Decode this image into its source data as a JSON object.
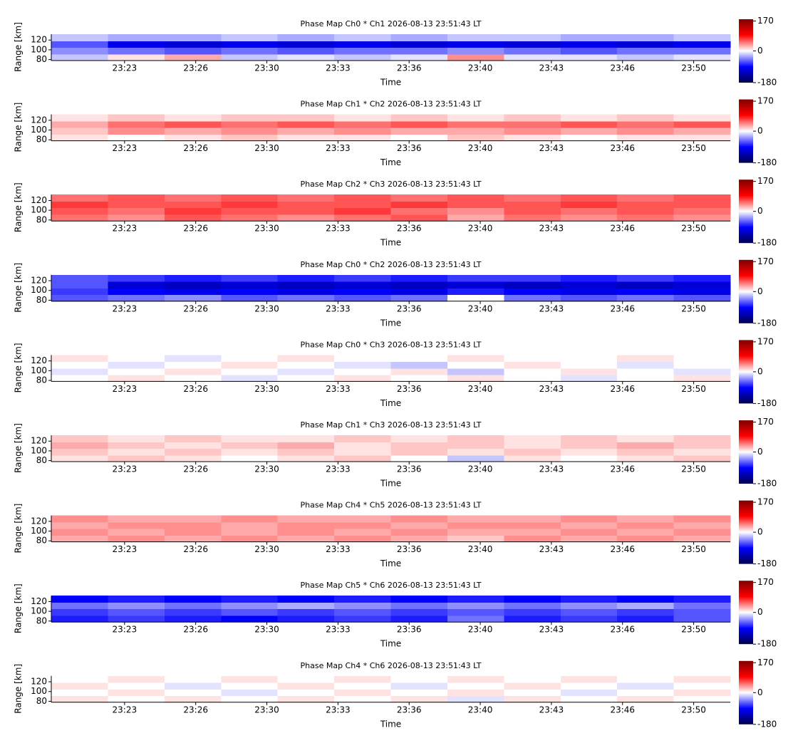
{
  "chart_data": [
    {
      "type": "heatmap",
      "title": "Phase Map Ch0 * Ch1 2026-08-13 23:51:43 LT",
      "xlabel": "Time",
      "ylabel": "Range [km]",
      "xlim": [
        "23:19:54",
        "23:51:43"
      ],
      "xticks": [
        {
          "value": "23:23:20",
          "label": "23:23"
        },
        {
          "value": "23:26:40",
          "label": "23:26"
        },
        {
          "value": "23:30:00",
          "label": "23:30"
        },
        {
          "value": "23:33:20",
          "label": "23:33"
        },
        {
          "value": "23:36:40",
          "label": "23:36"
        },
        {
          "value": "23:40:00",
          "label": "23:40"
        },
        {
          "value": "23:43:20",
          "label": "23:43"
        },
        {
          "value": "23:46:40",
          "label": "23:46"
        },
        {
          "value": "23:50:00",
          "label": "23:50"
        }
      ],
      "ylim": [
        78,
        132
      ],
      "yticks": [
        80,
        100,
        120
      ],
      "z": [
        [
          -20,
          10,
          30,
          -20,
          -10,
          -20,
          -10,
          40,
          -10,
          -10,
          -20,
          -10
        ],
        [
          -40,
          -50,
          -60,
          -50,
          -60,
          -50,
          -50,
          -40,
          -50,
          -60,
          -50,
          -50
        ],
        [
          -60,
          -100,
          -110,
          -100,
          -110,
          -100,
          -110,
          -100,
          -110,
          -100,
          -110,
          -100
        ],
        [
          -20,
          -30,
          -30,
          -20,
          -30,
          -20,
          -30,
          -20,
          -20,
          -30,
          -30,
          -20
        ]
      ],
      "clim": [
        -180,
        180
      ],
      "cticks": [
        170,
        0,
        -180
      ],
      "colormap": [
        "#00004c",
        "#0000ff",
        "#ffffff",
        "#ff0000",
        "#7f0000"
      ]
    },
    {
      "type": "heatmap",
      "title": "Phase Map Ch1 * Ch2 2026-08-13 23:51:43 LT",
      "xlabel": "Time",
      "ylabel": "Range [km]",
      "xlim": [
        "23:19:54",
        "23:51:43"
      ],
      "xticks": [
        {
          "value": "23:23:20",
          "label": "23:23"
        },
        {
          "value": "23:26:40",
          "label": "23:26"
        },
        {
          "value": "23:30:00",
          "label": "23:30"
        },
        {
          "value": "23:33:20",
          "label": "23:33"
        },
        {
          "value": "23:36:40",
          "label": "23:36"
        },
        {
          "value": "23:40:00",
          "label": "23:40"
        },
        {
          "value": "23:43:20",
          "label": "23:43"
        },
        {
          "value": "23:46:40",
          "label": "23:46"
        },
        {
          "value": "23:50:00",
          "label": "23:50"
        }
      ],
      "ylim": [
        78,
        132
      ],
      "yticks": [
        80,
        100,
        120
      ],
      "z": [
        [
          10,
          0,
          10,
          20,
          10,
          10,
          0,
          20,
          10,
          0,
          10,
          10
        ],
        [
          20,
          40,
          30,
          40,
          30,
          40,
          30,
          30,
          40,
          30,
          40,
          30
        ],
        [
          30,
          50,
          60,
          50,
          60,
          50,
          60,
          50,
          50,
          60,
          50,
          60
        ],
        [
          10,
          20,
          10,
          20,
          20,
          10,
          20,
          10,
          20,
          10,
          20,
          10
        ]
      ],
      "clim": [
        -180,
        180
      ],
      "cticks": [
        170,
        0,
        -180
      ],
      "colormap": [
        "#00004c",
        "#0000ff",
        "#ffffff",
        "#ff0000",
        "#7f0000"
      ]
    },
    {
      "type": "heatmap",
      "title": "Phase Map Ch2 * Ch3 2026-08-13 23:51:43 LT",
      "xlabel": "Time",
      "ylabel": "Range [km]",
      "xlim": [
        "23:19:54",
        "23:51:43"
      ],
      "xticks": [
        {
          "value": "23:23:20",
          "label": "23:23"
        },
        {
          "value": "23:26:40",
          "label": "23:26"
        },
        {
          "value": "23:30:00",
          "label": "23:30"
        },
        {
          "value": "23:33:20",
          "label": "23:33"
        },
        {
          "value": "23:36:40",
          "label": "23:36"
        },
        {
          "value": "23:40:00",
          "label": "23:40"
        },
        {
          "value": "23:43:20",
          "label": "23:43"
        },
        {
          "value": "23:46:40",
          "label": "23:46"
        },
        {
          "value": "23:50:00",
          "label": "23:50"
        }
      ],
      "ylim": [
        78,
        132
      ],
      "yticks": [
        80,
        100,
        120
      ],
      "z": [
        [
          50,
          40,
          60,
          50,
          40,
          50,
          60,
          30,
          50,
          40,
          50,
          40
        ],
        [
          60,
          50,
          70,
          60,
          60,
          70,
          50,
          40,
          60,
          50,
          60,
          50
        ],
        [
          70,
          60,
          60,
          70,
          60,
          60,
          70,
          60,
          60,
          70,
          60,
          60
        ],
        [
          50,
          60,
          50,
          60,
          50,
          60,
          50,
          60,
          50,
          60,
          50,
          60
        ]
      ],
      "clim": [
        -180,
        180
      ],
      "cticks": [
        170,
        0,
        -180
      ],
      "colormap": [
        "#00004c",
        "#0000ff",
        "#ffffff",
        "#ff0000",
        "#7f0000"
      ]
    },
    {
      "type": "heatmap",
      "title": "Phase Map Ch0 * Ch2 2026-08-13 23:51:43 LT",
      "xlabel": "Time",
      "ylabel": "Range [km]",
      "xlim": [
        "23:19:54",
        "23:51:43"
      ],
      "xticks": [
        {
          "value": "23:23:20",
          "label": "23:23"
        },
        {
          "value": "23:26:40",
          "label": "23:26"
        },
        {
          "value": "23:30:00",
          "label": "23:30"
        },
        {
          "value": "23:33:20",
          "label": "23:33"
        },
        {
          "value": "23:36:40",
          "label": "23:36"
        },
        {
          "value": "23:40:00",
          "label": "23:40"
        },
        {
          "value": "23:43:20",
          "label": "23:43"
        },
        {
          "value": "23:46:40",
          "label": "23:46"
        },
        {
          "value": "23:50:00",
          "label": "23:50"
        }
      ],
      "ylim": [
        78,
        132
      ],
      "yticks": [
        80,
        100,
        120
      ],
      "z": [
        [
          -60,
          -50,
          -40,
          -60,
          -50,
          -60,
          -50,
          0,
          -50,
          -60,
          -50,
          -60
        ],
        [
          -70,
          -90,
          -100,
          -90,
          -100,
          -90,
          -100,
          -80,
          -90,
          -100,
          -90,
          -100
        ],
        [
          -60,
          -110,
          -120,
          -110,
          -120,
          -110,
          -120,
          -110,
          -120,
          -110,
          -120,
          -110
        ],
        [
          -60,
          -70,
          -80,
          -70,
          -80,
          -70,
          -80,
          -70,
          -70,
          -80,
          -70,
          -80
        ]
      ],
      "clim": [
        -180,
        180
      ],
      "cticks": [
        170,
        0,
        -180
      ],
      "colormap": [
        "#00004c",
        "#0000ff",
        "#ffffff",
        "#ff0000",
        "#7f0000"
      ]
    },
    {
      "type": "heatmap",
      "title": "Phase Map Ch0 * Ch3 2026-08-13 23:51:43 LT",
      "xlabel": "Time",
      "ylabel": "Range [km]",
      "xlim": [
        "23:19:54",
        "23:51:43"
      ],
      "xticks": [
        {
          "value": "23:23:20",
          "label": "23:23"
        },
        {
          "value": "23:26:40",
          "label": "23:26"
        },
        {
          "value": "23:30:00",
          "label": "23:30"
        },
        {
          "value": "23:33:20",
          "label": "23:33"
        },
        {
          "value": "23:36:40",
          "label": "23:36"
        },
        {
          "value": "23:40:00",
          "label": "23:40"
        },
        {
          "value": "23:43:20",
          "label": "23:43"
        },
        {
          "value": "23:46:40",
          "label": "23:46"
        },
        {
          "value": "23:50:00",
          "label": "23:50"
        }
      ],
      "ylim": [
        78,
        132
      ],
      "yticks": [
        80,
        100,
        120
      ],
      "z": [
        [
          0,
          10,
          0,
          -10,
          0,
          10,
          0,
          10,
          0,
          -10,
          0,
          10
        ],
        [
          -10,
          0,
          10,
          0,
          -10,
          0,
          10,
          -20,
          0,
          10,
          0,
          -10
        ],
        [
          0,
          -10,
          0,
          10,
          0,
          -10,
          -20,
          0,
          10,
          0,
          -10,
          0
        ],
        [
          10,
          0,
          -10,
          0,
          10,
          0,
          0,
          10,
          0,
          0,
          10,
          0
        ]
      ],
      "clim": [
        -180,
        180
      ],
      "cticks": [
        170,
        0,
        -180
      ],
      "colormap": [
        "#00004c",
        "#0000ff",
        "#ffffff",
        "#ff0000",
        "#7f0000"
      ]
    },
    {
      "type": "heatmap",
      "title": "Phase Map Ch1 * Ch3 2026-08-13 23:51:43 LT",
      "xlabel": "Time",
      "ylabel": "Range [km]",
      "xlim": [
        "23:19:54",
        "23:51:43"
      ],
      "xticks": [
        {
          "value": "23:23:20",
          "label": "23:23"
        },
        {
          "value": "23:26:40",
          "label": "23:26"
        },
        {
          "value": "23:30:00",
          "label": "23:30"
        },
        {
          "value": "23:33:20",
          "label": "23:33"
        },
        {
          "value": "23:36:40",
          "label": "23:36"
        },
        {
          "value": "23:40:00",
          "label": "23:40"
        },
        {
          "value": "23:43:20",
          "label": "23:43"
        },
        {
          "value": "23:46:40",
          "label": "23:46"
        },
        {
          "value": "23:50:00",
          "label": "23:50"
        }
      ],
      "ylim": [
        78,
        132
      ],
      "yticks": [
        80,
        100,
        120
      ],
      "z": [
        [
          10,
          20,
          10,
          0,
          10,
          20,
          0,
          -20,
          10,
          0,
          10,
          20
        ],
        [
          20,
          10,
          20,
          10,
          20,
          10,
          20,
          10,
          20,
          10,
          20,
          10
        ],
        [
          30,
          20,
          10,
          20,
          30,
          10,
          20,
          20,
          10,
          20,
          30,
          20
        ],
        [
          20,
          10,
          20,
          10,
          10,
          20,
          10,
          20,
          10,
          20,
          10,
          20
        ]
      ],
      "clim": [
        -180,
        180
      ],
      "cticks": [
        170,
        0,
        -180
      ],
      "colormap": [
        "#00004c",
        "#0000ff",
        "#ffffff",
        "#ff0000",
        "#7f0000"
      ]
    },
    {
      "type": "heatmap",
      "title": "Phase Map Ch4 * Ch5 2026-08-13 23:51:43 LT",
      "xlabel": "Time",
      "ylabel": "Range [km]",
      "xlim": [
        "23:19:54",
        "23:51:43"
      ],
      "xticks": [
        {
          "value": "23:23:20",
          "label": "23:23"
        },
        {
          "value": "23:26:40",
          "label": "23:26"
        },
        {
          "value": "23:30:00",
          "label": "23:30"
        },
        {
          "value": "23:33:20",
          "label": "23:33"
        },
        {
          "value": "23:36:40",
          "label": "23:36"
        },
        {
          "value": "23:40:00",
          "label": "23:40"
        },
        {
          "value": "23:43:20",
          "label": "23:43"
        },
        {
          "value": "23:46:40",
          "label": "23:46"
        },
        {
          "value": "23:50:00",
          "label": "23:50"
        }
      ],
      "ylim": [
        78,
        132
      ],
      "yticks": [
        80,
        100,
        120
      ],
      "z": [
        [
          30,
          40,
          30,
          40,
          30,
          40,
          30,
          20,
          40,
          30,
          40,
          30
        ],
        [
          40,
          30,
          40,
          30,
          40,
          30,
          40,
          30,
          30,
          40,
          30,
          40
        ],
        [
          30,
          40,
          40,
          30,
          40,
          40,
          30,
          40,
          40,
          30,
          40,
          30
        ],
        [
          40,
          30,
          30,
          40,
          30,
          30,
          40,
          30,
          30,
          40,
          30,
          40
        ]
      ],
      "clim": [
        -180,
        180
      ],
      "cticks": [
        170,
        0,
        -180
      ],
      "colormap": [
        "#00004c",
        "#0000ff",
        "#ffffff",
        "#ff0000",
        "#7f0000"
      ]
    },
    {
      "type": "heatmap",
      "title": "Phase Map Ch5 * Ch6 2026-08-13 23:51:43 LT",
      "xlabel": "Time",
      "ylabel": "Range [km]",
      "xlim": [
        "23:19:54",
        "23:51:43"
      ],
      "xticks": [
        {
          "value": "23:23:20",
          "label": "23:23"
        },
        {
          "value": "23:26:40",
          "label": "23:26"
        },
        {
          "value": "23:30:00",
          "label": "23:30"
        },
        {
          "value": "23:33:20",
          "label": "23:33"
        },
        {
          "value": "23:36:40",
          "label": "23:36"
        },
        {
          "value": "23:40:00",
          "label": "23:40"
        },
        {
          "value": "23:43:20",
          "label": "23:43"
        },
        {
          "value": "23:46:40",
          "label": "23:46"
        },
        {
          "value": "23:50:00",
          "label": "23:50"
        }
      ],
      "ylim": [
        78,
        132
      ],
      "yticks": [
        80,
        100,
        120
      ],
      "z": [
        [
          -80,
          -70,
          -80,
          -90,
          -80,
          -70,
          -80,
          -50,
          -80,
          -70,
          -80,
          -60
        ],
        [
          -70,
          -60,
          -70,
          -60,
          -70,
          -60,
          -70,
          -60,
          -70,
          -60,
          -70,
          -60
        ],
        [
          -50,
          -40,
          -50,
          -40,
          -30,
          -40,
          -50,
          -40,
          -50,
          -40,
          -30,
          -50
        ],
        [
          -90,
          -80,
          -90,
          -80,
          -90,
          -80,
          -90,
          -80,
          -90,
          -80,
          -90,
          -80
        ]
      ],
      "clim": [
        -180,
        180
      ],
      "cticks": [
        170,
        0,
        -180
      ],
      "colormap": [
        "#00004c",
        "#0000ff",
        "#ffffff",
        "#ff0000",
        "#7f0000"
      ]
    },
    {
      "type": "heatmap",
      "title": "Phase Map Ch4 * Ch6 2026-08-13 23:51:43 LT",
      "xlabel": "Time",
      "ylabel": "Range [km]",
      "xlim": [
        "23:19:54",
        "23:51:43"
      ],
      "xticks": [
        {
          "value": "23:23:20",
          "label": "23:23"
        },
        {
          "value": "23:26:40",
          "label": "23:26"
        },
        {
          "value": "23:30:00",
          "label": "23:30"
        },
        {
          "value": "23:33:20",
          "label": "23:33"
        },
        {
          "value": "23:36:40",
          "label": "23:36"
        },
        {
          "value": "23:40:00",
          "label": "23:40"
        },
        {
          "value": "23:43:20",
          "label": "23:43"
        },
        {
          "value": "23:46:40",
          "label": "23:46"
        },
        {
          "value": "23:50:00",
          "label": "23:50"
        }
      ],
      "ylim": [
        78,
        132
      ],
      "yticks": [
        80,
        100,
        120
      ],
      "z": [
        [
          10,
          0,
          10,
          0,
          10,
          0,
          10,
          -10,
          10,
          0,
          10,
          0
        ],
        [
          0,
          10,
          0,
          -10,
          0,
          10,
          0,
          10,
          0,
          -10,
          0,
          10
        ],
        [
          10,
          0,
          -10,
          0,
          10,
          0,
          -10,
          0,
          10,
          0,
          -10,
          0
        ],
        [
          0,
          10,
          0,
          10,
          0,
          10,
          0,
          10,
          0,
          10,
          0,
          10
        ]
      ],
      "clim": [
        -180,
        180
      ],
      "cticks": [
        170,
        0,
        -180
      ],
      "colormap": [
        "#00004c",
        "#0000ff",
        "#ffffff",
        "#ff0000",
        "#7f0000"
      ]
    }
  ]
}
